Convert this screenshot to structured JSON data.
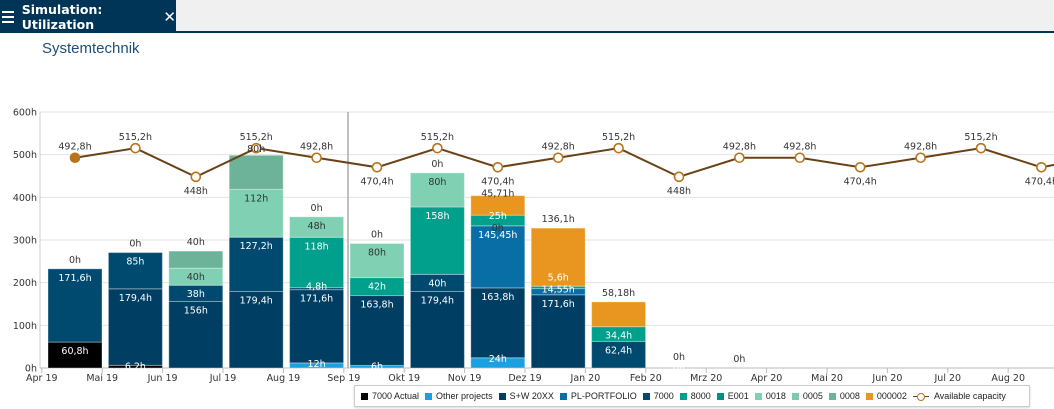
{
  "tab": {
    "title": "Simulation: Utilization",
    "menu_icon": "hamburger-icon",
    "close_icon": "close-icon"
  },
  "page_title": "Systemtechnik",
  "chart_data": {
    "type": "bar",
    "stacked": true,
    "categories": [
      "Apr 19",
      "Mai 19",
      "Jun 19",
      "Jul 19",
      "Aug 19",
      "Sep 19",
      "Okt 19",
      "Nov 19",
      "Dez 19",
      "Jan 20",
      "Feb 20",
      "Mrz 20",
      "Apr 20",
      "Mai 20",
      "Jun 20",
      "Jul 20",
      "Aug 20"
    ],
    "ylim": [
      0,
      600
    ],
    "yticks": [
      "0h",
      "100h",
      "200h",
      "300h",
      "400h",
      "500h",
      "600h"
    ],
    "ytick_values": [
      0,
      100,
      200,
      300,
      400,
      500,
      600
    ],
    "unit": "h",
    "grid": true,
    "legend_position": "bottom-right",
    "series": [
      {
        "name": "7000 Actual",
        "color": "#000000",
        "values": [
          60.8,
          6.2,
          null,
          null,
          null,
          null,
          null,
          null,
          null,
          null,
          null,
          null,
          null,
          null,
          null,
          null,
          null
        ]
      },
      {
        "name": "Other projects",
        "color": "#1ba1e2",
        "values": [
          null,
          null,
          null,
          null,
          12,
          6,
          null,
          24,
          null,
          null,
          null,
          null,
          null,
          null,
          null,
          null,
          null
        ]
      },
      {
        "name": "S+W 20XX",
        "color": "#003e63",
        "values": [
          null,
          179.4,
          156,
          179.4,
          171.6,
          163.8,
          179.4,
          163.8,
          171.6,
          null,
          null,
          null,
          null,
          null,
          null,
          null,
          null
        ]
      },
      {
        "name": "PL-PORTFOLIO",
        "color": "#0a6ea6",
        "values": [
          null,
          null,
          null,
          null,
          null,
          null,
          null,
          145.45,
          14.55,
          null,
          null,
          null,
          null,
          null,
          null,
          null,
          null
        ]
      },
      {
        "name": "7000",
        "color": "#004a70",
        "values": [
          171.6,
          85,
          38,
          127.2,
          4.8,
          null,
          40,
          null,
          null,
          62.4,
          0,
          null,
          null,
          null,
          null,
          null,
          null
        ]
      },
      {
        "name": "8000",
        "color": "#00a08c",
        "values": [
          null,
          null,
          null,
          null,
          118,
          42,
          158,
          25,
          5.6,
          34.4,
          null,
          null,
          null,
          null,
          null,
          null,
          null
        ]
      },
      {
        "name": "E001",
        "color": "#008f80",
        "values": [
          null,
          null,
          null,
          null,
          null,
          null,
          null,
          null,
          null,
          null,
          null,
          null,
          null,
          null,
          null,
          null,
          null
        ]
      },
      {
        "name": "0018",
        "color": "#80d0b4",
        "values": [
          null,
          null,
          40,
          112,
          48,
          80,
          80,
          null,
          null,
          null,
          null,
          null,
          null,
          null,
          null,
          null,
          null
        ]
      },
      {
        "name": "0005",
        "color": "#7fc9ad",
        "values": [
          null,
          null,
          null,
          null,
          null,
          null,
          null,
          null,
          null,
          null,
          null,
          null,
          null,
          null,
          null,
          null,
          null
        ]
      },
      {
        "name": "0008",
        "color": "#6db39a",
        "values": [
          0,
          0,
          40,
          80,
          0,
          0,
          0,
          0,
          null,
          null,
          null,
          null,
          null,
          null,
          null,
          null,
          null
        ]
      },
      {
        "name": "000002",
        "color": "#e8961f",
        "values": [
          null,
          null,
          null,
          null,
          null,
          null,
          null,
          45.71,
          136.1,
          58.18,
          0,
          0,
          null,
          null,
          null,
          null,
          null
        ]
      }
    ],
    "line_series": {
      "name": "Available capacity",
      "color": "#6b4217",
      "marker_color": "#b8731d",
      "values": [
        492.8,
        515.2,
        448,
        515.2,
        492.8,
        470.4,
        515.2,
        470.4,
        492.8,
        515.2,
        448,
        492.8,
        492.8,
        470.4,
        492.8,
        515.2,
        470.4
      ]
    }
  }
}
